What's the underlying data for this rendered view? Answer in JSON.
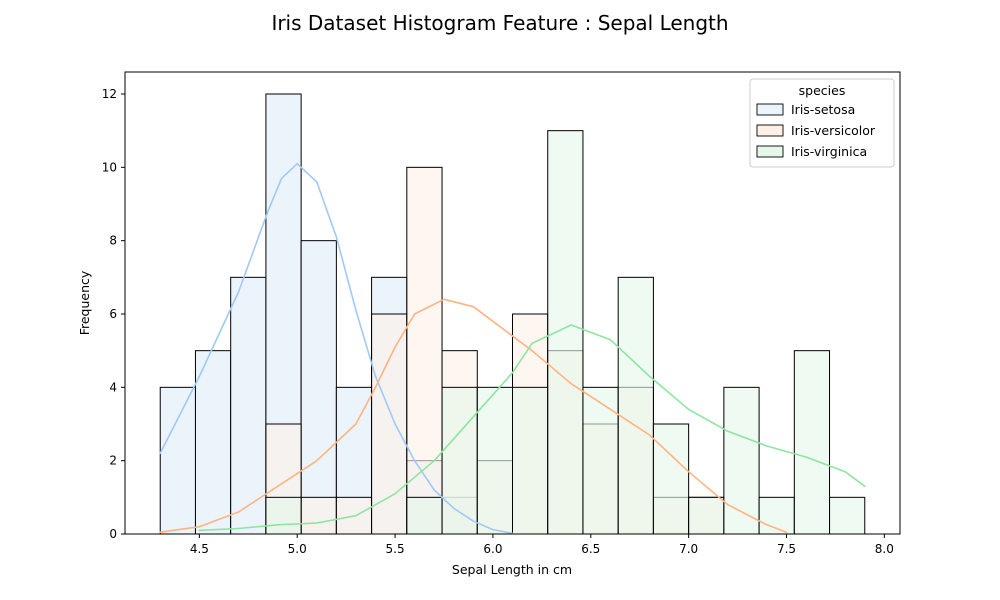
{
  "chart_data": {
    "type": "histogram",
    "title": "Iris Dataset Histogram Feature :  Sepal Length",
    "xlabel": "Sepal Length in cm",
    "ylabel": "Frequency",
    "xlim": [
      4.12,
      8.08
    ],
    "ylim": [
      0,
      12.6
    ],
    "xticks": [
      "4.5",
      "5.0",
      "5.5",
      "6.0",
      "6.5",
      "7.0",
      "7.5",
      "8.0"
    ],
    "yticks": [
      "0",
      "2",
      "4",
      "6",
      "8",
      "10",
      "12"
    ],
    "grid": false,
    "bin_edges": [
      4.3,
      4.48,
      4.66,
      4.84,
      5.02,
      5.2,
      5.38,
      5.56,
      5.74,
      5.92,
      6.1,
      6.28,
      6.46,
      6.64,
      6.82,
      7.0,
      7.18,
      7.36,
      7.54,
      7.72,
      7.9
    ],
    "legend": {
      "title": "species",
      "position": "upper right"
    },
    "series": [
      {
        "name": "Iris-setosa",
        "fill_color": "#ebf3fb",
        "line_color": "#a1c9f4",
        "counts": [
          4,
          5,
          7,
          12,
          8,
          4,
          7,
          2,
          1,
          0,
          0,
          0,
          0,
          0,
          0,
          0,
          0,
          0,
          0,
          0
        ],
        "kde": [
          [
            4.3,
            2.2
          ],
          [
            4.5,
            4.3
          ],
          [
            4.7,
            6.6
          ],
          [
            4.85,
            8.8
          ],
          [
            4.92,
            9.7
          ],
          [
            5.0,
            10.1
          ],
          [
            5.1,
            9.6
          ],
          [
            5.2,
            8.1
          ],
          [
            5.3,
            6.1
          ],
          [
            5.4,
            4.3
          ],
          [
            5.5,
            3.0
          ],
          [
            5.6,
            2.0
          ],
          [
            5.7,
            1.2
          ],
          [
            5.8,
            0.7
          ],
          [
            5.9,
            0.35
          ],
          [
            6.0,
            0.12
          ],
          [
            6.1,
            0.02
          ]
        ]
      },
      {
        "name": "Iris-versicolor",
        "fill_color": "#fdf0e6",
        "line_color": "#ffb482",
        "counts": [
          0,
          0,
          0,
          3,
          1,
          1,
          6,
          10,
          5,
          2,
          6,
          5,
          3,
          4,
          1,
          1,
          0,
          0,
          0,
          0
        ],
        "kde": [
          [
            4.3,
            0.05
          ],
          [
            4.5,
            0.2
          ],
          [
            4.7,
            0.6
          ],
          [
            4.9,
            1.3
          ],
          [
            5.1,
            2.0
          ],
          [
            5.3,
            3.0
          ],
          [
            5.4,
            4.0
          ],
          [
            5.5,
            5.1
          ],
          [
            5.6,
            6.0
          ],
          [
            5.75,
            6.4
          ],
          [
            5.9,
            6.2
          ],
          [
            6.0,
            5.8
          ],
          [
            6.2,
            5.0
          ],
          [
            6.4,
            4.1
          ],
          [
            6.6,
            3.4
          ],
          [
            6.8,
            2.7
          ],
          [
            7.0,
            1.7
          ],
          [
            7.2,
            0.8
          ],
          [
            7.4,
            0.25
          ],
          [
            7.5,
            0.05
          ]
        ]
      },
      {
        "name": "Iris-virginica",
        "fill_color": "#e5f7ea",
        "line_color": "#8de5a1",
        "counts": [
          0,
          0,
          0,
          1,
          0,
          0,
          0,
          1,
          4,
          4,
          4,
          11,
          4,
          7,
          3,
          1,
          4,
          1,
          5,
          1
        ],
        "kde": [
          [
            4.5,
            0.1
          ],
          [
            4.7,
            0.15
          ],
          [
            4.9,
            0.25
          ],
          [
            5.1,
            0.3
          ],
          [
            5.3,
            0.5
          ],
          [
            5.5,
            1.1
          ],
          [
            5.7,
            2.0
          ],
          [
            5.9,
            3.2
          ],
          [
            6.1,
            4.4
          ],
          [
            6.2,
            5.2
          ],
          [
            6.4,
            5.7
          ],
          [
            6.6,
            5.3
          ],
          [
            6.8,
            4.3
          ],
          [
            7.0,
            3.4
          ],
          [
            7.2,
            2.8
          ],
          [
            7.4,
            2.4
          ],
          [
            7.6,
            2.1
          ],
          [
            7.8,
            1.7
          ],
          [
            7.9,
            1.3
          ]
        ]
      }
    ]
  }
}
